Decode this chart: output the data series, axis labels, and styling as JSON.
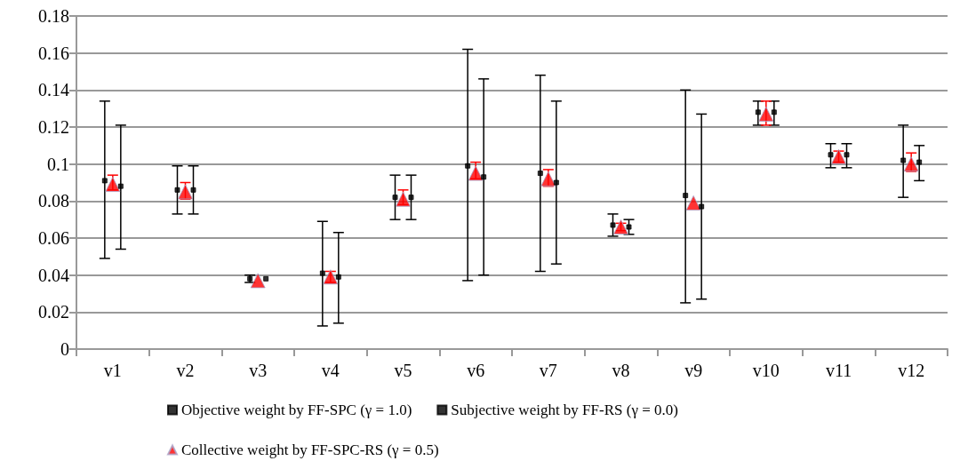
{
  "chart_data": {
    "type": "scatter",
    "categories": [
      "v1",
      "v2",
      "v3",
      "v4",
      "v5",
      "v6",
      "v7",
      "v8",
      "v9",
      "v10",
      "v11",
      "v12"
    ],
    "ylim": [
      0,
      0.18
    ],
    "yticks": [
      0,
      0.02,
      0.04,
      0.06,
      0.08,
      0.1,
      0.12,
      0.14,
      0.16,
      0.18
    ],
    "grid": "y",
    "legend": "bottom",
    "series": [
      {
        "name": "Objective weight by FF-SPC (γ = 1.0)",
        "color": "#000000",
        "marker": "square",
        "values": [
          0.091,
          0.086,
          0.038,
          0.041,
          0.082,
          0.099,
          0.095,
          0.067,
          0.083,
          0.128,
          0.105,
          0.102
        ],
        "errors": [
          [
            0.049,
            0.134
          ],
          [
            0.073,
            0.099
          ],
          [
            0.036,
            0.04
          ],
          [
            0.0125,
            0.069
          ],
          [
            0.07,
            0.094
          ],
          [
            0.037,
            0.162
          ],
          [
            0.042,
            0.148
          ],
          [
            0.061,
            0.073
          ],
          [
            0.025,
            0.14
          ],
          [
            0.121,
            0.134
          ],
          [
            0.098,
            0.111
          ],
          [
            0.082,
            0.121
          ]
        ]
      },
      {
        "name": "Subjective weight by FF-RS (γ = 0.0)",
        "color": "#000000",
        "marker": "square",
        "values": [
          0.088,
          0.086,
          0.038,
          0.039,
          0.082,
          0.093,
          0.09,
          0.066,
          0.077,
          0.128,
          0.105,
          0.101
        ],
        "errors": [
          [
            0.054,
            0.121
          ],
          [
            0.073,
            0.099
          ],
          null,
          [
            0.014,
            0.063
          ],
          [
            0.07,
            0.094
          ],
          [
            0.04,
            0.146
          ],
          [
            0.046,
            0.134
          ],
          [
            0.062,
            0.07
          ],
          [
            0.027,
            0.127
          ],
          [
            0.121,
            0.134
          ],
          [
            0.098,
            0.111
          ],
          [
            0.091,
            0.11
          ]
        ]
      },
      {
        "name": "Collective weight by FF-SPC-RS (γ = 0.5)",
        "color": "#ff0000",
        "marker": "triangle",
        "values": [
          0.089,
          0.085,
          0.037,
          0.039,
          0.081,
          0.095,
          0.092,
          0.066,
          0.079,
          0.127,
          0.104,
          0.1
        ],
        "errors": [
          [
            0.086,
            0.094
          ],
          [
            0.081,
            0.09
          ],
          null,
          [
            0.036,
            0.042
          ],
          [
            0.078,
            0.086
          ],
          [
            0.092,
            0.101
          ],
          [
            0.088,
            0.097
          ],
          [
            0.064,
            0.068
          ],
          null,
          [
            0.121,
            0.134
          ],
          [
            0.101,
            0.107
          ],
          [
            0.096,
            0.106
          ]
        ]
      }
    ]
  }
}
